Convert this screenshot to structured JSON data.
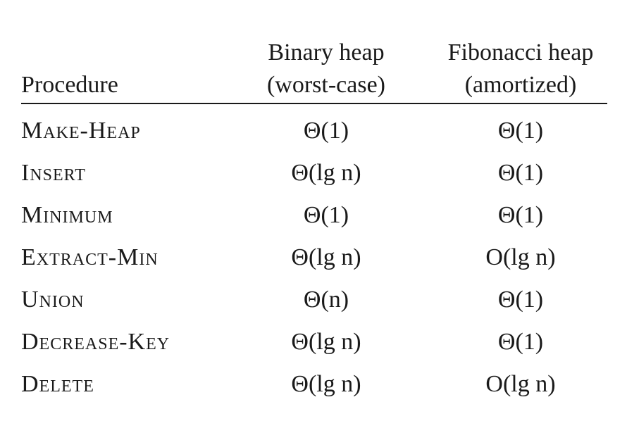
{
  "table": {
    "headers": {
      "procedure": "Procedure",
      "binary_line1": "Binary heap",
      "binary_line2": "(worst-case)",
      "fib_line1": "Fibonacci heap",
      "fib_line2": "(amortized)"
    },
    "rows": [
      {
        "procedure": "Make-Heap",
        "binary": "Θ(1)",
        "fib": "Θ(1)"
      },
      {
        "procedure": "Insert",
        "binary": "Θ(lg n)",
        "fib": "Θ(1)"
      },
      {
        "procedure": "Minimum",
        "binary": "Θ(1)",
        "fib": "Θ(1)"
      },
      {
        "procedure": "Extract-Min",
        "binary": "Θ(lg n)",
        "fib": "O(lg n)"
      },
      {
        "procedure": "Union",
        "binary": "Θ(n)",
        "fib": "Θ(1)"
      },
      {
        "procedure": "Decrease-Key",
        "binary": "Θ(lg n)",
        "fib": "Θ(1)"
      },
      {
        "procedure": "Delete",
        "binary": "Θ(lg n)",
        "fib": "O(lg n)"
      }
    ]
  }
}
